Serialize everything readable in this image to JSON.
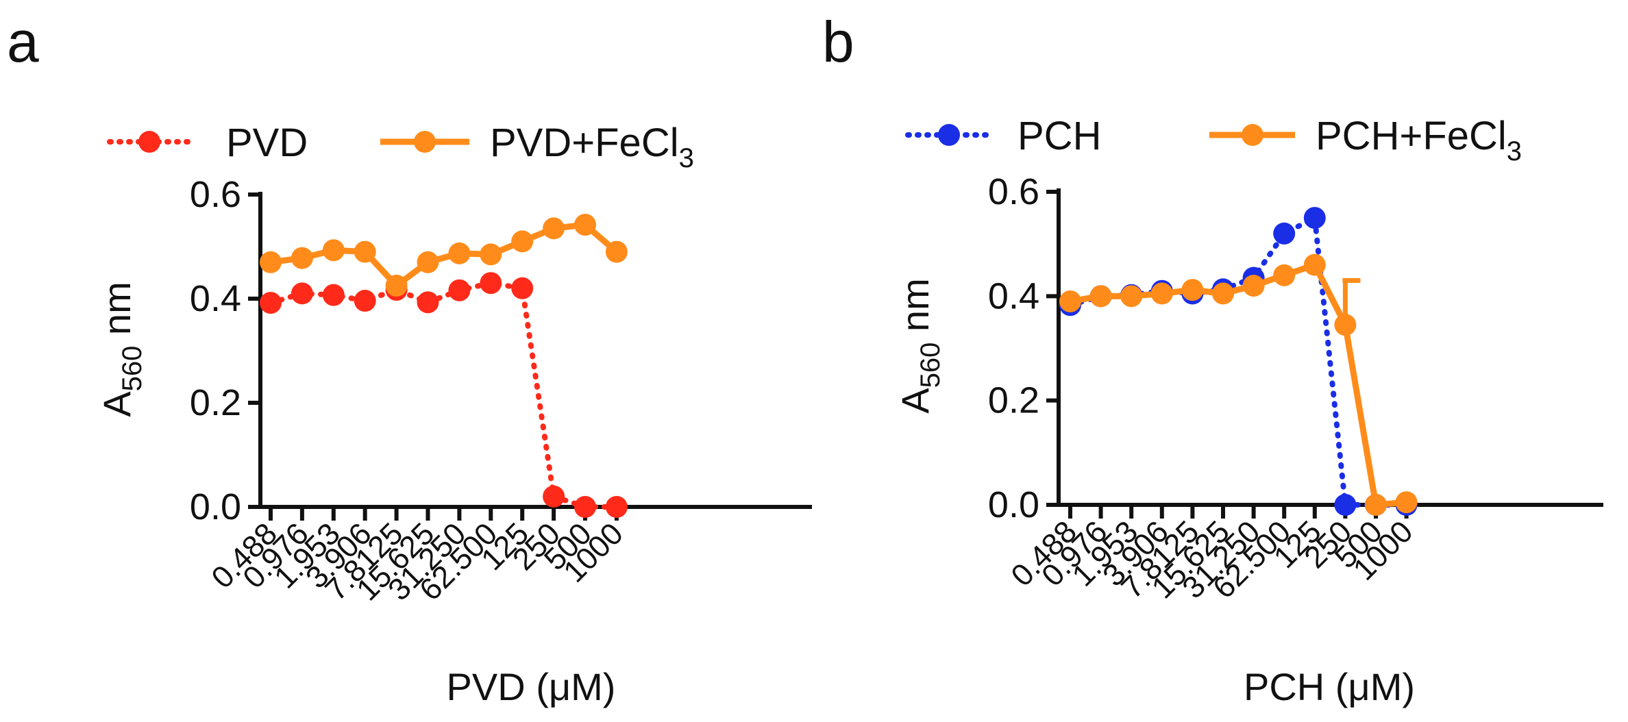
{
  "chart_data": [
    {
      "type": "line",
      "panel_label": "a",
      "legend": [
        {
          "name": "PVD",
          "style": "dotted",
          "color": "#ff2a1a"
        },
        {
          "name": "PVD+FeCl",
          "subscript": "3",
          "style": "solid",
          "color": "#ff8c1a"
        }
      ],
      "categories": [
        "0.488",
        "0.976",
        "1.953",
        "3.906",
        "7.8125",
        "15.625",
        "31.250",
        "62.500",
        "125",
        "250",
        "500",
        "1000"
      ],
      "series": [
        {
          "name": "PVD",
          "color": "#ff2a1a",
          "style": "dotted",
          "values": [
            0.392,
            0.41,
            0.407,
            0.396,
            0.417,
            0.393,
            0.416,
            0.43,
            0.42,
            0.02,
            0.0,
            0.0
          ]
        },
        {
          "name": "PVD+FeCl3",
          "color": "#ff8c1a",
          "style": "solid",
          "values": [
            0.47,
            0.478,
            0.493,
            0.49,
            0.425,
            0.47,
            0.487,
            0.485,
            0.51,
            0.535,
            0.542,
            0.49
          ]
        }
      ],
      "ylim": [
        0,
        0.6
      ],
      "yticks": [
        "0.0",
        "0.2",
        "0.4",
        "0.6"
      ],
      "ylabel": {
        "base": "A",
        "subscript": "560",
        "suffix": " nm"
      },
      "xlabel": "PVD (μM)"
    },
    {
      "type": "line",
      "panel_label": "b",
      "legend": [
        {
          "name": "PCH",
          "style": "dotted",
          "color": "#1a2ee6"
        },
        {
          "name": "PCH+FeCl",
          "subscript": "3",
          "style": "solid",
          "color": "#ff8c1a"
        }
      ],
      "categories": [
        "0.488",
        "0.976",
        "1.953",
        "3.906",
        "7.8125",
        "15.625",
        "31.250",
        "62.500",
        "125",
        "250",
        "500",
        "1000"
      ],
      "series": [
        {
          "name": "PCH",
          "color": "#1a2ee6",
          "style": "dotted",
          "values": [
            0.383,
            0.4,
            0.402,
            0.41,
            0.405,
            0.413,
            0.435,
            0.52,
            0.55,
            0.0,
            0.0,
            0.0
          ]
        },
        {
          "name": "PCH+FeCl3",
          "color": "#ff8c1a",
          "style": "solid",
          "values": [
            0.39,
            0.4,
            0.4,
            0.405,
            0.412,
            0.405,
            0.42,
            0.44,
            0.46,
            0.345,
            0.0,
            0.005
          ],
          "error_upper": [
            null,
            null,
            null,
            null,
            null,
            null,
            null,
            null,
            null,
            0.43,
            null,
            null
          ]
        }
      ],
      "ylim": [
        0,
        0.6
      ],
      "yticks": [
        "0.0",
        "0.2",
        "0.4",
        "0.6"
      ],
      "ylabel": {
        "base": "A",
        "subscript": "560",
        "suffix": " nm"
      },
      "xlabel": "PCH (μM)"
    }
  ]
}
